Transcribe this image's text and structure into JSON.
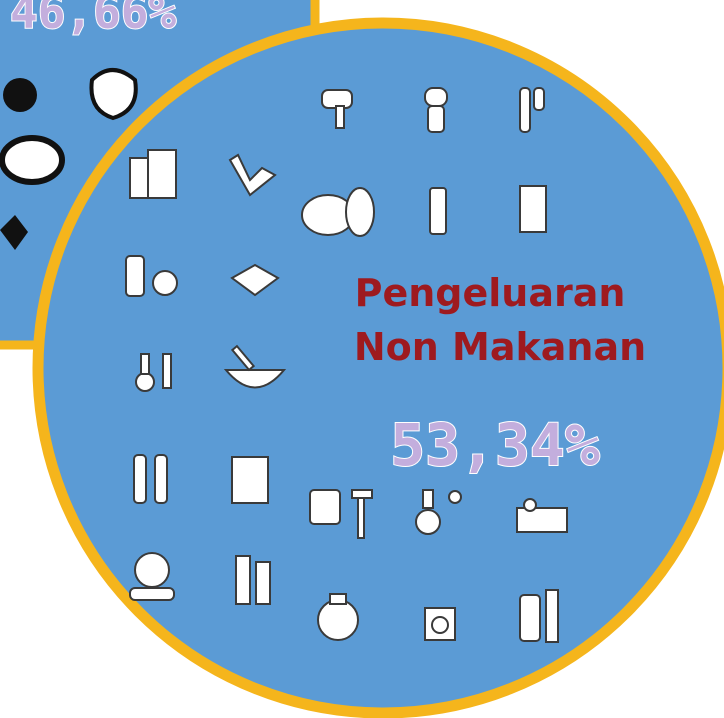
{
  "left_panel": {
    "percentage": "46,66%"
  },
  "main_circle": {
    "title_lines": [
      "Pengeluaran",
      "Non Makanan"
    ],
    "percentage": "53,34%"
  }
}
